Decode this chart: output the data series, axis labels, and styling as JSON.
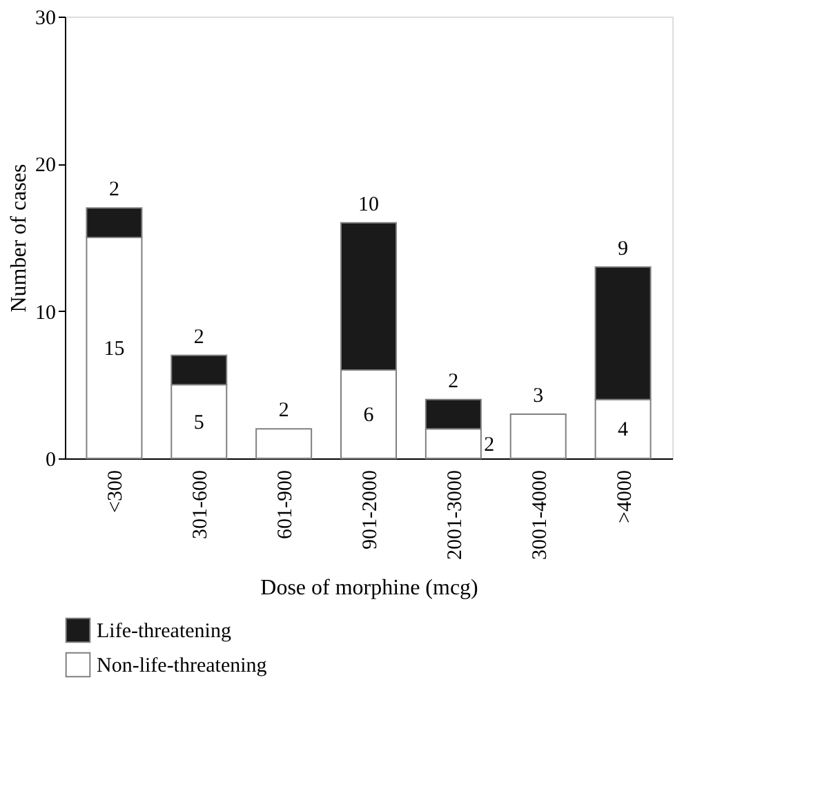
{
  "chart_data": {
    "type": "bar",
    "stacked": true,
    "xlabel": "Dose of morphine (mcg)",
    "ylabel": "Number of cases",
    "categories": [
      "<300",
      "301-600",
      "601-900",
      "901-2000",
      "2001-3000",
      "3001-4000",
      ">4000"
    ],
    "series": [
      {
        "name": "Non-life-threatening",
        "color": "#ffffff",
        "values": [
          15,
          5,
          2,
          6,
          2,
          3,
          4
        ],
        "value_labels": [
          "15",
          "5",
          "2",
          "6",
          "2",
          "3",
          "4"
        ]
      },
      {
        "name": "Life-threatening",
        "color": "#1a1a1a",
        "values": [
          2,
          2,
          null,
          10,
          2,
          null,
          9
        ],
        "value_labels": [
          "2",
          "2",
          null,
          "10",
          "2",
          null,
          "9"
        ]
      }
    ],
    "ylim": [
      0,
      30
    ],
    "yticks": [
      0,
      10,
      20,
      30
    ],
    "grid": false,
    "legend": "bottom left"
  }
}
